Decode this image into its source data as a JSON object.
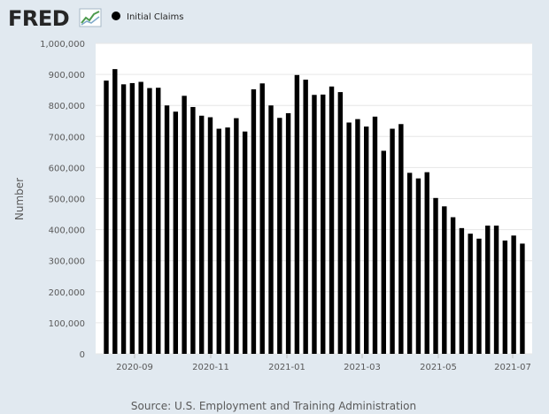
{
  "brand": {
    "name": "FRED",
    "logo_icon": "line-graph-icon"
  },
  "legend": {
    "label": "Initial Claims",
    "marker_color": "#000000"
  },
  "source": "Source: U.S. Employment and Training Administration",
  "colors": {
    "background": "#e1e9f0",
    "plot_background": "#ffffff",
    "bar": "#000000",
    "gridline": "#e6e6e6"
  },
  "chart_data": {
    "type": "bar",
    "ylabel": "Number",
    "xlabel": "",
    "ylim": [
      0,
      1000000
    ],
    "yticks": [
      0,
      100000,
      200000,
      300000,
      400000,
      500000,
      600000,
      700000,
      800000,
      900000,
      1000000
    ],
    "ytick_labels": [
      "0",
      "100,000",
      "200,000",
      "300,000",
      "400,000",
      "500,000",
      "600,000",
      "700,000",
      "800,000",
      "900,000",
      "1,000,000"
    ],
    "xtick_labels": [
      "2020-09",
      "2020-11",
      "2021-01",
      "2021-03",
      "2021-05",
      "2021-07"
    ],
    "grid": true,
    "legend_position": "top-left",
    "series": [
      {
        "name": "Initial Claims",
        "values": [
          880000,
          917000,
          868000,
          872000,
          876000,
          856000,
          857000,
          800000,
          780000,
          831000,
          795000,
          767000,
          762000,
          725000,
          729000,
          759000,
          716000,
          852000,
          871000,
          800000,
          760000,
          775000,
          898000,
          883000,
          834000,
          835000,
          861000,
          843000,
          745000,
          756000,
          732000,
          764000,
          654000,
          725000,
          740000,
          583000,
          565000,
          585000,
          502000,
          475000,
          440000,
          405000,
          387000,
          371000,
          413000,
          413000,
          365000,
          381000,
          355000
        ]
      }
    ]
  }
}
